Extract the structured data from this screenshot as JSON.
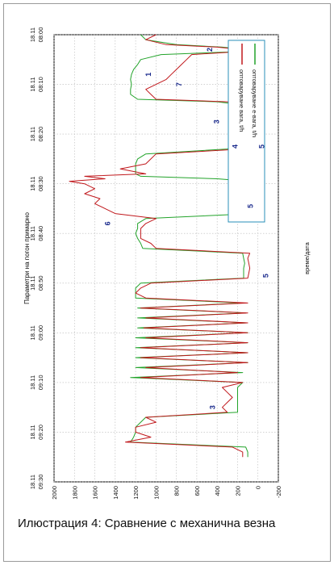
{
  "caption": "Илюстрация 4: Сравнение с механична везна",
  "chart_data": {
    "type": "line",
    "title": "Параметри на погон примарно",
    "xlabel": "време/дата",
    "ylabel": "",
    "orientation": "rotated-90-cw",
    "xlim": [
      "08:00",
      "09:30"
    ],
    "ylim": [
      -200,
      2000
    ],
    "grid": true,
    "legend_placement": "top-right",
    "x_ticks": [
      {
        "time": "08:00",
        "date": "18.11"
      },
      {
        "time": "08:10",
        "date": "18.11"
      },
      {
        "time": "08:20",
        "date": "18.11"
      },
      {
        "time": "08:30",
        "date": "18.11"
      },
      {
        "time": "08:40",
        "date": "18.11"
      },
      {
        "time": "08:50",
        "date": "18.11"
      },
      {
        "time": "09:00",
        "date": "18.11"
      },
      {
        "time": "09:10",
        "date": "18.11"
      },
      {
        "time": "09:20",
        "date": "18.11"
      },
      {
        "time": "09:30",
        "date": "18.11"
      }
    ],
    "y_ticks": [
      2000,
      1800,
      1600,
      1400,
      1200,
      1000,
      800,
      600,
      400,
      200,
      0,
      -200
    ],
    "x_minutes": [
      0,
      1,
      2,
      2.5,
      3,
      3.5,
      4,
      5,
      6,
      7,
      8,
      9,
      10,
      11,
      12,
      13,
      13.5,
      14,
      15,
      16,
      17,
      18,
      19,
      20,
      21,
      22,
      23,
      24,
      25,
      26,
      27,
      28,
      28.5,
      29,
      29.5,
      30,
      31,
      32,
      33,
      34,
      35,
      36,
      37,
      38,
      39,
      40,
      41,
      42,
      43,
      44,
      45,
      46,
      47,
      48,
      49,
      50,
      51,
      52,
      53,
      54,
      55,
      56,
      57,
      58,
      59,
      60,
      61,
      62,
      63,
      64,
      65,
      66,
      67,
      68,
      69,
      70,
      71,
      72,
      73,
      74,
      75,
      76,
      77,
      78,
      79,
      80,
      81,
      82,
      83,
      84,
      85,
      86,
      87,
      88,
      89,
      90
    ],
    "series": [
      {
        "name": "оптоваруване е-вага, t/h",
        "color": "#22a32a",
        "values": [
          1150,
          1100,
          800,
          350,
          120,
          300,
          950,
          1150,
          1180,
          1220,
          1240,
          1250,
          1240,
          1250,
          1250,
          1180,
          400,
          200,
          170,
          160,
          150,
          150,
          150,
          160,
          170,
          200,
          300,
          1100,
          1180,
          1200,
          1200,
          1200,
          1150,
          400,
          80,
          60,
          50,
          50,
          50,
          50,
          50,
          50,
          1100,
          1180,
          1180,
          1200,
          1180,
          1150,
          1130,
          150,
          140,
          130,
          140,
          140,
          140,
          1150,
          1200,
          1200,
          1200,
          150,
          1180,
          120,
          1180,
          110,
          1180,
          100,
          1200,
          100,
          1200,
          100,
          1200,
          100,
          1200,
          150,
          1250,
          150,
          200,
          200,
          200,
          200,
          200,
          200,
          1100,
          1150,
          1200,
          1200,
          1220,
          1250,
          120,
          100,
          100
        ]
      },
      {
        "name": "оптоваруване вага, t/h",
        "color": "#c0181c",
        "values": [
          1000,
          1100,
          900,
          400,
          150,
          250,
          650,
          700,
          750,
          800,
          850,
          900,
          1000,
          1100,
          1050,
          1000,
          300,
          250,
          200,
          150,
          200,
          250,
          220,
          200,
          180,
          200,
          150,
          1000,
          1050,
          1100,
          1350,
          1100,
          1700,
          1500,
          1850,
          1700,
          1600,
          1700,
          1550,
          1600,
          1500,
          1400,
          1000,
          1100,
          1150,
          1150,
          1150,
          1050,
          1000,
          80,
          100,
          90,
          80,
          90,
          100,
          1050,
          1150,
          1200,
          1100,
          100,
          1150,
          100,
          1100,
          100,
          1120,
          100,
          1100,
          100,
          1150,
          100,
          1150,
          100,
          1100,
          200,
          1150,
          150,
          350,
          300,
          250,
          300,
          350,
          300,
          1100,
          1000,
          1200,
          1200,
          1050,
          1300,
          250,
          150,
          150
        ]
      }
    ],
    "annotations": [
      {
        "label": "1",
        "time_min": 8,
        "value": 1050
      },
      {
        "label": "7",
        "time_min": 10,
        "value": 750
      },
      {
        "label": "2",
        "time_min": 3,
        "value": 450
      },
      {
        "label": "3",
        "time_min": 17.5,
        "value": 380
      },
      {
        "label": "4",
        "time_min": 22.5,
        "value": 200
      },
      {
        "label": "5",
        "time_min": 22.5,
        "value": -60
      },
      {
        "label": "5",
        "time_min": 34.5,
        "value": 50
      },
      {
        "label": "6",
        "time_min": 38,
        "value": 1450
      },
      {
        "label": "5",
        "time_min": 48.5,
        "value": -100
      },
      {
        "label": "3",
        "time_min": 75,
        "value": 420
      }
    ]
  }
}
